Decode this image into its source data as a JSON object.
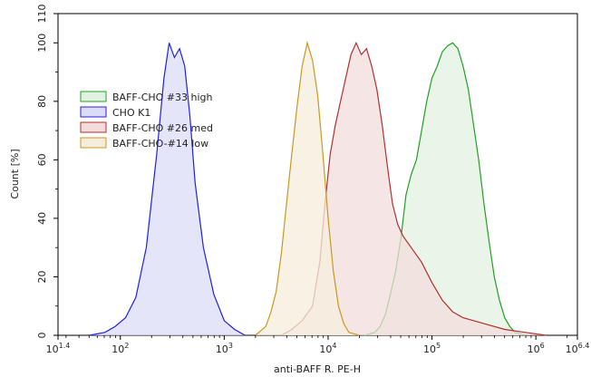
{
  "chart_data": {
    "type": "area",
    "title": "",
    "xlabel": "anti-BAFF R. PE-H",
    "ylabel": "Count [%]",
    "xscale": "log10",
    "xlim_log": [
      1.4,
      6.4
    ],
    "ylim": [
      0,
      110
    ],
    "x_ticks": [
      {
        "base": "10",
        "exp": "1.4",
        "log": 1.4
      },
      {
        "base": "10",
        "exp": "2",
        "log": 2
      },
      {
        "base": "10",
        "exp": "3",
        "log": 3
      },
      {
        "base": "10",
        "exp": "4",
        "log": 4
      },
      {
        "base": "10",
        "exp": "5",
        "log": 5
      },
      {
        "base": "10",
        "exp": "6",
        "log": 6
      },
      {
        "base": "10",
        "exp": "6.4",
        "log": 6.4
      }
    ],
    "y_ticks": [
      "0",
      "20",
      "40",
      "60",
      "80",
      "100",
      "110"
    ],
    "y_tick_values": [
      0,
      20,
      40,
      60,
      80,
      100,
      110
    ],
    "legend_position": "left",
    "series": [
      {
        "name": "BAFF-CHO #33 high",
        "color": "#22a022",
        "fill": "#e2f2e2",
        "points": [
          [
            4.35,
            0
          ],
          [
            4.45,
            1
          ],
          [
            4.5,
            3
          ],
          [
            4.55,
            7
          ],
          [
            4.6,
            14
          ],
          [
            4.65,
            22
          ],
          [
            4.7,
            33
          ],
          [
            4.75,
            48
          ],
          [
            4.8,
            55
          ],
          [
            4.85,
            60
          ],
          [
            4.9,
            70
          ],
          [
            4.95,
            80
          ],
          [
            5.0,
            88
          ],
          [
            5.05,
            92
          ],
          [
            5.1,
            97
          ],
          [
            5.15,
            99
          ],
          [
            5.2,
            100
          ],
          [
            5.25,
            98
          ],
          [
            5.3,
            92
          ],
          [
            5.35,
            84
          ],
          [
            5.4,
            72
          ],
          [
            5.45,
            60
          ],
          [
            5.5,
            45
          ],
          [
            5.55,
            32
          ],
          [
            5.6,
            20
          ],
          [
            5.65,
            12
          ],
          [
            5.7,
            6
          ],
          [
            5.75,
            3
          ],
          [
            5.8,
            1
          ],
          [
            5.9,
            0
          ]
        ]
      },
      {
        "name": "CHO K1",
        "color": "#2020e0",
        "fill": "#dcdcf8",
        "points": [
          [
            1.7,
            0
          ],
          [
            1.85,
            1
          ],
          [
            1.95,
            3
          ],
          [
            2.05,
            6
          ],
          [
            2.15,
            13
          ],
          [
            2.25,
            30
          ],
          [
            2.35,
            62
          ],
          [
            2.42,
            88
          ],
          [
            2.47,
            100
          ],
          [
            2.52,
            95
          ],
          [
            2.57,
            98
          ],
          [
            2.62,
            92
          ],
          [
            2.67,
            75
          ],
          [
            2.72,
            52
          ],
          [
            2.8,
            30
          ],
          [
            2.9,
            14
          ],
          [
            3.0,
            5
          ],
          [
            3.1,
            2
          ],
          [
            3.2,
            0
          ]
        ]
      },
      {
        "name": "BAFF-CHO #26 med",
        "color": "#b03030",
        "fill": "#f2dcdc",
        "points": [
          [
            3.55,
            0
          ],
          [
            3.65,
            2
          ],
          [
            3.75,
            5
          ],
          [
            3.85,
            10
          ],
          [
            3.92,
            25
          ],
          [
            3.97,
            45
          ],
          [
            4.02,
            62
          ],
          [
            4.07,
            72
          ],
          [
            4.12,
            80
          ],
          [
            4.17,
            88
          ],
          [
            4.22,
            96
          ],
          [
            4.27,
            100
          ],
          [
            4.32,
            96
          ],
          [
            4.37,
            98
          ],
          [
            4.42,
            92
          ],
          [
            4.47,
            84
          ],
          [
            4.52,
            72
          ],
          [
            4.57,
            58
          ],
          [
            4.62,
            45
          ],
          [
            4.67,
            38
          ],
          [
            4.72,
            34
          ],
          [
            4.8,
            30
          ],
          [
            4.9,
            25
          ],
          [
            5.0,
            18
          ],
          [
            5.1,
            12
          ],
          [
            5.2,
            8
          ],
          [
            5.3,
            6
          ],
          [
            5.5,
            4
          ],
          [
            5.7,
            2
          ],
          [
            5.9,
            1
          ],
          [
            6.1,
            0
          ]
        ]
      },
      {
        "name": "BAFF-CHO-#14 low",
        "color": "#c89820",
        "fill": "#f5eddc",
        "points": [
          [
            3.3,
            0
          ],
          [
            3.4,
            3
          ],
          [
            3.45,
            8
          ],
          [
            3.5,
            15
          ],
          [
            3.55,
            28
          ],
          [
            3.6,
            45
          ],
          [
            3.65,
            62
          ],
          [
            3.7,
            78
          ],
          [
            3.75,
            92
          ],
          [
            3.8,
            100
          ],
          [
            3.85,
            94
          ],
          [
            3.9,
            82
          ],
          [
            3.95,
            62
          ],
          [
            4.0,
            40
          ],
          [
            4.05,
            22
          ],
          [
            4.1,
            10
          ],
          [
            4.15,
            4
          ],
          [
            4.2,
            1
          ],
          [
            4.3,
            0
          ]
        ]
      }
    ]
  }
}
